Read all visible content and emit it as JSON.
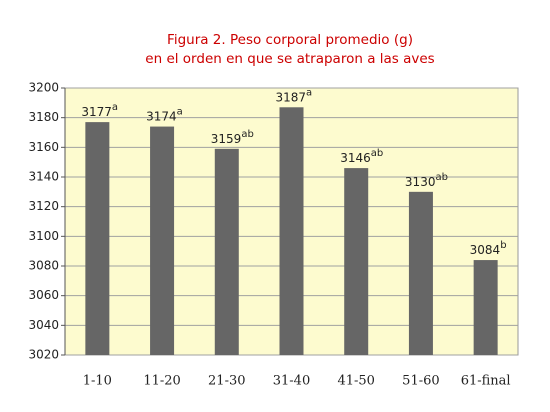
{
  "chart_data": {
    "type": "bar",
    "title": [
      "Figura 2. Peso corporal promedio (g)",
      "en el orden en que se atraparon a las aves"
    ],
    "categories": [
      "1-10",
      "11-20",
      "21-30",
      "31-40",
      "41-50",
      "51-60",
      "61-final"
    ],
    "values": [
      3177,
      3174,
      3159,
      3187,
      3146,
      3130,
      3084
    ],
    "letters": [
      "a",
      "a",
      "ab",
      "a",
      "ab",
      "ab",
      "b"
    ],
    "color": "#666666",
    "ylim": [
      3020,
      3200
    ],
    "yticks": [
      3020,
      3040,
      3060,
      3080,
      3100,
      3120,
      3140,
      3160,
      3180,
      3200
    ],
    "grid": true
  }
}
